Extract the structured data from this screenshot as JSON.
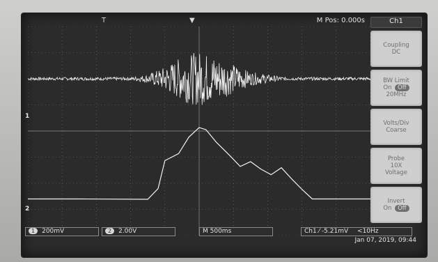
{
  "header": {
    "trigger_mark": "T",
    "center_mark": "▼",
    "mpos": "M Pos: 0.000s"
  },
  "channel_markers": {
    "ch1": "1",
    "ch2": "2"
  },
  "side_menu": {
    "title": "Ch1",
    "items": [
      {
        "line1": "Coupling",
        "line2": "DC"
      },
      {
        "line1": "BW Limit",
        "line2_on": "On",
        "line2_off": "Off",
        "line3": "20MHz"
      },
      {
        "line1": "Volts/Div",
        "line2": "Coarse"
      },
      {
        "line1": "Probe",
        "line2": "10X",
        "line3": "Voltage"
      },
      {
        "line1": "Invert",
        "line2_on": "On",
        "line2_off": "Off"
      }
    ]
  },
  "status": {
    "ch1_badge": "1",
    "ch1_scale": "200mV",
    "ch2_badge": "2",
    "ch2_scale": "2.00V",
    "timebase": "M 500ms",
    "trigger": "Ch1 ⁄ -5.21mV",
    "freq": "<10Hz",
    "date": "Jan 07, 2019, 09:44"
  },
  "colors": {
    "trace": "#f2f2f2",
    "grid": "#7a7a7a",
    "screen": "#2b2b2b"
  },
  "chart_data": {
    "type": "line",
    "title": "",
    "xlabel": "",
    "ylabel": "",
    "xlim": [
      -5,
      5
    ],
    "ylim": [
      -4,
      4
    ],
    "grid": true,
    "series": [
      {
        "x": [
          -5,
          -4.5,
          -4,
          -3.5,
          -3,
          -2.5,
          -2,
          -1.5,
          -1,
          -0.5,
          0,
          0.5,
          1,
          1.5,
          2,
          2.5,
          3,
          3.5,
          4,
          4.5,
          5
        ],
        "values": [
          2.0,
          2.0,
          2.0,
          2.0,
          2.0,
          2.0,
          2.0,
          2.1,
          2.4,
          2.8,
          3.0,
          2.8,
          2.5,
          2.2,
          2.1,
          2.0,
          2.0,
          2.0,
          2.0,
          2.0,
          2.0
        ]
      },
      {
        "x": [
          -5,
          -3.5,
          -1.5,
          -1.2,
          -1.0,
          -0.6,
          -0.3,
          0,
          0.2,
          0.5,
          0.9,
          1.2,
          1.5,
          1.8,
          2.1,
          2.4,
          2.7,
          3.0,
          3.3,
          5
        ],
        "values": [
          -2.6,
          -2.6,
          -2.6,
          -2.2,
          -1.2,
          -0.9,
          -0.3,
          0.2,
          0.0,
          -0.5,
          -0.9,
          -1.3,
          -1.1,
          -1.5,
          -1.6,
          -1.4,
          -1.8,
          -2.3,
          -2.6,
          -2.6
        ]
      }
    ]
  }
}
